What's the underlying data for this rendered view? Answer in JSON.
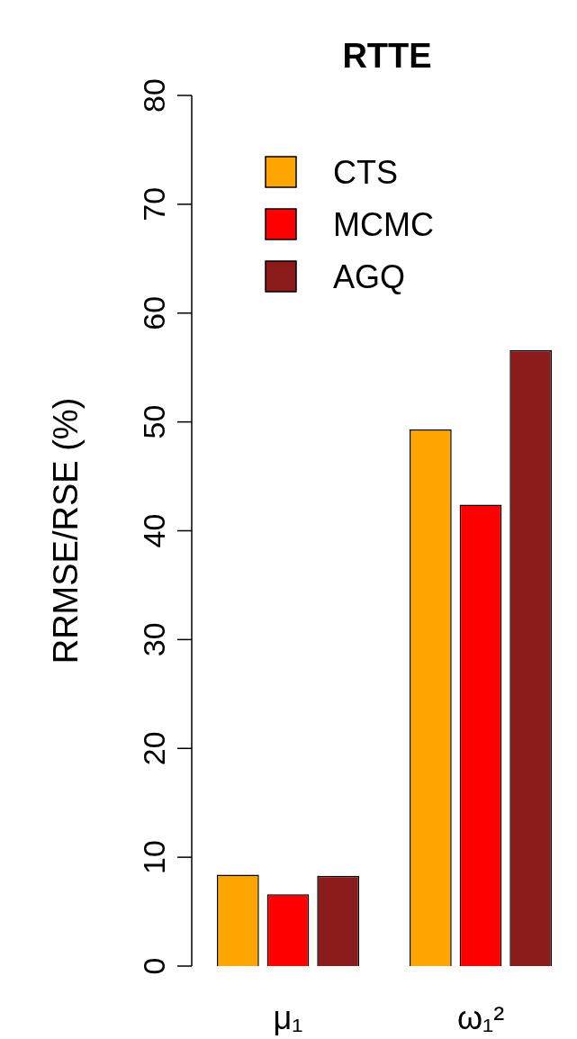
{
  "chart_data": {
    "type": "bar",
    "title": "RTTE",
    "ylabel": "RRMSE/RSE (%)",
    "categories": [
      "μ₁",
      "ω₁²"
    ],
    "series": [
      {
        "name": "CTS",
        "color": "#ffa500",
        "values": [
          8.4,
          49.3
        ]
      },
      {
        "name": "MCMC",
        "color": "#ff0000",
        "values": [
          6.6,
          42.4
        ]
      },
      {
        "name": "AGQ",
        "color": "#8b1a1a",
        "values": [
          8.3,
          56.6
        ]
      }
    ],
    "ylim": [
      0,
      80
    ],
    "yticks": [
      0,
      10,
      20,
      30,
      40,
      50,
      60,
      70,
      80
    ],
    "legend": "top"
  }
}
